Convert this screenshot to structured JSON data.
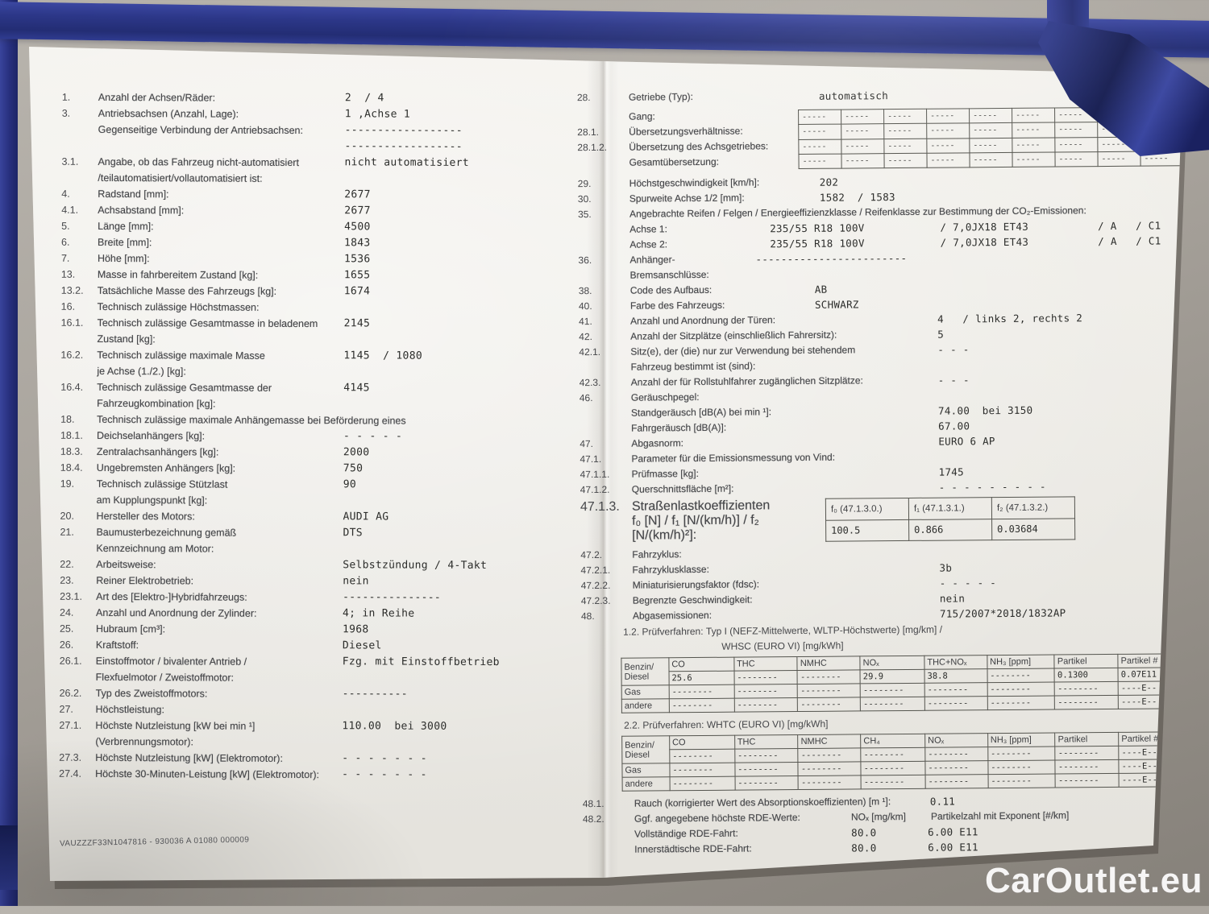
{
  "watermark": "CarOutlet.eu",
  "footer_code": "VAUZZZF33N1047816 - 930036 A 01080     000009",
  "left": {
    "rows": [
      {
        "n": "1.",
        "t": "Anzahl der Achsen/Räder:",
        "v": "2  / 4"
      },
      {
        "n": "3.",
        "t": "Antriebsachsen (Anzahl, Lage):",
        "v": "1 ,Achse 1"
      },
      {
        "n": "",
        "t": "Gegenseitige Verbindung der Antriebsachsen:",
        "v": "------------------\n------------------"
      },
      {
        "n": "3.1.",
        "t": "Angabe, ob das Fahrzeug nicht-automatisiert\n/teilautomatisiert/vollautomatisiert ist:",
        "v": "nicht automatisiert"
      },
      {
        "n": "4.",
        "t": "Radstand [mm]:",
        "v": "2677"
      },
      {
        "n": "4.1.",
        "t": "Achsabstand [mm]:",
        "v": "2677"
      },
      {
        "n": "5.",
        "t": "Länge [mm]:",
        "v": "4500"
      },
      {
        "n": "6.",
        "t": "Breite [mm]:",
        "v": "1843"
      },
      {
        "n": "7.",
        "t": "Höhe [mm]:",
        "v": "1536"
      },
      {
        "n": "13.",
        "t": "Masse in fahrbereitem Zustand [kg]:",
        "v": "1655"
      },
      {
        "n": "13.2.",
        "t": "Tatsächliche Masse des Fahrzeugs [kg]:",
        "v": "1674"
      },
      {
        "n": "16.",
        "t": "Technisch zulässige Höchstmassen:",
        "v": ""
      },
      {
        "n": "16.1.",
        "t": "Technisch zulässige Gesamtmasse in beladenem\nZustand [kg]:",
        "v": "2145"
      },
      {
        "n": "16.2.",
        "t": "Technisch zulässige maximale Masse\nje Achse (1./2.) [kg]:",
        "v": "1145  / 1080"
      },
      {
        "n": "16.4.",
        "t": "Technisch zulässige Gesamtmasse der\nFahrzeugkombination [kg]:",
        "v": "4145"
      },
      {
        "n": "18.",
        "t": "Technisch zulässige maximale Anhängemasse bei Beförderung eines",
        "v": "",
        "lw": 500
      },
      {
        "n": "18.1.",
        "t": "Deichselanhängers [kg]:",
        "v": "- - - - -"
      },
      {
        "n": "18.3.",
        "t": "Zentralachsanhängers [kg]:",
        "v": "2000"
      },
      {
        "n": "18.4.",
        "t": "Ungebremsten Anhängers [kg]:",
        "v": "750"
      },
      {
        "n": "19.",
        "t": "Technisch zulässige Stützlast\nam Kupplungspunkt [kg]:",
        "v": "90"
      },
      {
        "n": "20.",
        "t": "Hersteller des Motors:",
        "v": "AUDI AG"
      },
      {
        "n": "21.",
        "t": "Baumusterbezeichnung gemäß\nKennzeichnung am Motor:",
        "v": "DTS"
      },
      {
        "n": "22.",
        "t": "Arbeitsweise:",
        "v": "Selbstzündung / 4-Takt"
      },
      {
        "n": "23.",
        "t": "Reiner Elektrobetrieb:",
        "v": "nein"
      },
      {
        "n": "23.1.",
        "t": "Art des [Elektro-]Hybridfahrzeugs:",
        "v": "---------------"
      },
      {
        "n": "24.",
        "t": "Anzahl und Anordnung der Zylinder:",
        "v": "4; in Reihe"
      },
      {
        "n": "25.",
        "t": "Hubraum [cm³]:",
        "v": "1968"
      },
      {
        "n": "26.",
        "t": "Kraftstoff:",
        "v": "Diesel"
      },
      {
        "n": "26.1.",
        "t": "Einstoffmotor / bivalenter Antrieb /\nFlexfuelmotor / Zweistoffmotor:",
        "v": "Fzg. mit Einstoffbetrieb"
      },
      {
        "n": "26.2.",
        "t": "Typ des Zweistoffmotors:",
        "v": "----------"
      },
      {
        "n": "27.",
        "t": "Höchstleistung:",
        "v": ""
      },
      {
        "n": "27.1.",
        "t": "Höchste Nutzleistung [kW bei min ¹]\n(Verbrennungsmotor):",
        "v": "110.00  bei 3000"
      },
      {
        "n": "27.3.",
        "t": "Höchste Nutzleistung [kW] (Elektromotor):",
        "v": "- - - - - - -"
      },
      {
        "n": "27.4.",
        "t": "Höchste 30-Minuten-Leistung [kW] (Elektromotor):",
        "v": "- - - - - - -"
      }
    ]
  },
  "right": {
    "top_rows": [
      {
        "n": "28.",
        "t": "Getriebe (Typ):",
        "v": "automatisch",
        "lw": 232
      }
    ],
    "gear": {
      "labels": [
        {
          "n": "",
          "t": "Gang:"
        },
        {
          "n": "28.1.",
          "t": "Übersetzungsverhältnisse:"
        },
        {
          "n": "28.1.2.",
          "t": "Übersetzung des Achsgetriebes:"
        },
        {
          "n": "",
          "t": "Gesamtübersetzung:"
        }
      ],
      "cell": "-----",
      "rows": 4,
      "cols": 9
    },
    "mid_rows": [
      {
        "n": "29.",
        "t": "Höchstgeschwindigkeit [km/h]:",
        "v": "202",
        "lw": 232,
        "mt": 4
      },
      {
        "n": "30.",
        "t": "Spurweite Achse 1/2 [mm]:",
        "v": "1582  / 1583",
        "lw": 232
      },
      {
        "n": "35.",
        "t": "Angebrachte Reifen / Felgen / Energieeffizienzklasse / Reifenklasse zur Bestimmung der CO₂-Emissionen:",
        "v": "",
        "lw": 670
      },
      {
        "n": "",
        "t": "Achse 1:",
        "v": "235/55 R18 100V            / 7,0JX18 ET43           / A   / C1",
        "lw": 170
      },
      {
        "n": "",
        "t": "Achse 2:",
        "v": "235/55 R18 100V            / 7,0JX18 ET43           / A   / C1",
        "lw": 170
      },
      {
        "n": "36.",
        "t": "Anhänger-Bremsanschlüsse:",
        "v": "------------------------",
        "lw": 152
      },
      {
        "n": "38.",
        "t": "Code des Aufbaus:",
        "v": "AB",
        "lw": 225
      },
      {
        "n": "40.",
        "t": "Farbe des Fahrzeugs:",
        "v": "SCHWARZ",
        "lw": 225
      },
      {
        "n": "41.",
        "t": "Anzahl und Anordnung der Türen:",
        "v": "4   / links 2, rechts 2",
        "lw": 377
      },
      {
        "n": "42.",
        "t": "Anzahl der Sitzplätze (einschließlich Fahrersitz):",
        "v": "5",
        "lw": 377
      },
      {
        "n": "42.1.",
        "t": "Sitz(e), der (die) nur zur Verwendung bei stehendem\nFahrzeug bestimmt ist (sind):",
        "v": "- - -",
        "lw": 377
      },
      {
        "n": "42.3.",
        "t": "Anzahl der für Rollstuhlfahrer zugänglichen Sitzplätze:",
        "v": "- - -",
        "lw": 377
      },
      {
        "n": "46.",
        "t": "Geräuschpegel:",
        "v": "",
        "lw": 377
      },
      {
        "n": "",
        "t": "Standgeräusch [dB(A) bei min ¹]:",
        "v": "74.00  bei 3150",
        "lw": 377
      },
      {
        "n": "",
        "t": "Fahrgeräusch [dB(A)]:",
        "v": "67.00",
        "lw": 377
      },
      {
        "n": "47.",
        "t": "Abgasnorm:",
        "v": "EURO 6 AP",
        "lw": 377
      },
      {
        "n": "47.1.",
        "t": "Parameter für die Emissionsmessung von Vind:",
        "v": "",
        "lw": 600
      },
      {
        "n": "47.1.1.",
        "t": "Prüfmasse [kg]:",
        "v": "1745",
        "lw": 377
      },
      {
        "n": "47.1.2.",
        "t": "Querschnittsfläche [m²]:",
        "v": "- - - - - - - - -",
        "lw": 377
      }
    ],
    "coef": {
      "n": "47.1.3.",
      "t1": "Straßenlastkoeffizienten",
      "t2": "f₀ [N] / f₁ [N/(km/h)] / f₂ [N/(km/h)²]:",
      "headers": [
        "f₀ (47.1.3.0.)",
        "f₁ (47.1.3.1.)",
        "f₂ (47.1.3.2.)"
      ],
      "values": [
        "100.5",
        "0.866",
        "0.03684"
      ]
    },
    "mid2_rows": [
      {
        "n": "47.2.",
        "t": "Fahrzyklus:",
        "v": "",
        "lw": 377
      },
      {
        "n": "47.2.1.",
        "t": "Fahrzyklusklasse:",
        "v": "3b",
        "lw": 377
      },
      {
        "n": "47.2.2.",
        "t": "Miniaturisierungsfaktor (fdsc):",
        "v": "- - - - -",
        "lw": 377
      },
      {
        "n": "47.2.3.",
        "t": "Begrenzte Geschwindigkeit:",
        "v": "nein",
        "lw": 377
      },
      {
        "n": "48.",
        "t": "Abgasemissionen:",
        "v": "715/2007*2018/1832AP",
        "lw": 377
      }
    ],
    "pv12": {
      "prefix": "1.2.",
      "label": "Prüfverfahren:",
      "line1": "Typ I (NEFZ-Mittelwerte, WLTP-Höchstwerte) [mg/km] /",
      "line2": "WHSC (EURO VI) [mg/kWh]"
    },
    "em1": {
      "rowhead_top": "Benzin/",
      "rowhead_bottom": "Diesel",
      "rowheads": [
        "Gas",
        "andere"
      ],
      "headers": [
        "CO",
        "THC",
        "NMHC",
        "NOₓ",
        "THC+NOₓ",
        "NH₃ [ppm]",
        "Partikel",
        "Partikel #"
      ],
      "rows": [
        [
          "25.6",
          "--------",
          "--------",
          "29.9",
          "38.8",
          "--------",
          "0.1300",
          "0.07E11"
        ],
        [
          "--------",
          "--------",
          "--------",
          "--------",
          "--------",
          "--------",
          "--------",
          "----E--"
        ],
        [
          "--------",
          "--------",
          "--------",
          "--------",
          "--------",
          "--------",
          "--------",
          "----E--"
        ]
      ]
    },
    "pv22": {
      "prefix": "2.2.",
      "label": "Prüfverfahren:",
      "line1": "WHTC (EURO VI) [mg/kWh]"
    },
    "em2": {
      "rowhead_top": "Benzin/",
      "rowhead_bottom": "Diesel",
      "rowheads": [
        "Gas",
        "andere"
      ],
      "headers": [
        "CO",
        "THC",
        "NMHC",
        "CH₄",
        "NOₓ",
        "NH₃ [ppm]",
        "Partikel",
        "Partikel #"
      ],
      "rows": [
        [
          "--------",
          "--------",
          "--------",
          "--------",
          "--------",
          "--------",
          "--------",
          "----E--"
        ],
        [
          "--------",
          "--------",
          "--------",
          "--------",
          "--------",
          "--------",
          "--------",
          "----E--"
        ],
        [
          "--------",
          "--------",
          "--------",
          "--------",
          "--------",
          "--------",
          "--------",
          "----E--"
        ]
      ]
    },
    "bottom_rows": [
      {
        "n": "48.1.",
        "t": "Rauch (korrigierter Wert des Absorptionskoeffizienten) [m ¹]:",
        "v": "0.11",
        "lw": 363,
        "mt": 2
      }
    ],
    "rde": {
      "n": "48.2.",
      "head": "Ggf. angegebene höchste RDE-Werte:",
      "col1": "NOₓ [mg/km]",
      "col2": "Partikelzahl mit Exponent [#/km]",
      "rows": [
        {
          "label": "Vollständige RDE-Fahrt:",
          "nox": "80.0",
          "pn": "6.00 E11"
        },
        {
          "label": "Innerstädtische RDE-Fahrt:",
          "nox": "80.0",
          "pn": "6.00 E11"
        }
      ]
    }
  }
}
